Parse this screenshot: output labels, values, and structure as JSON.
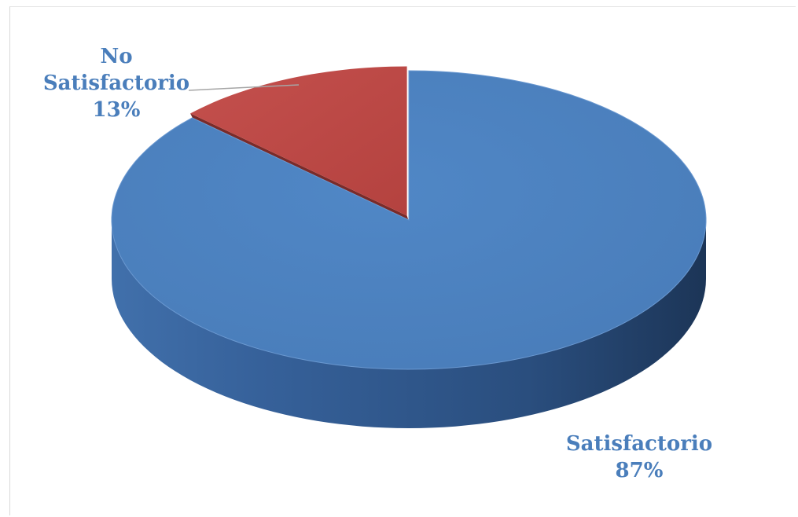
{
  "chart_data": {
    "type": "pie",
    "slices": [
      {
        "label": "Satisfactorio",
        "value": 87,
        "value_label": "87%",
        "color": "#4a7ebb"
      },
      {
        "label": "No Satisfactorio",
        "value": 13,
        "value_label": "13%",
        "color": "#be4b48"
      }
    ],
    "style": "3d",
    "label_color": "#4a7ebb",
    "legend": "none"
  }
}
